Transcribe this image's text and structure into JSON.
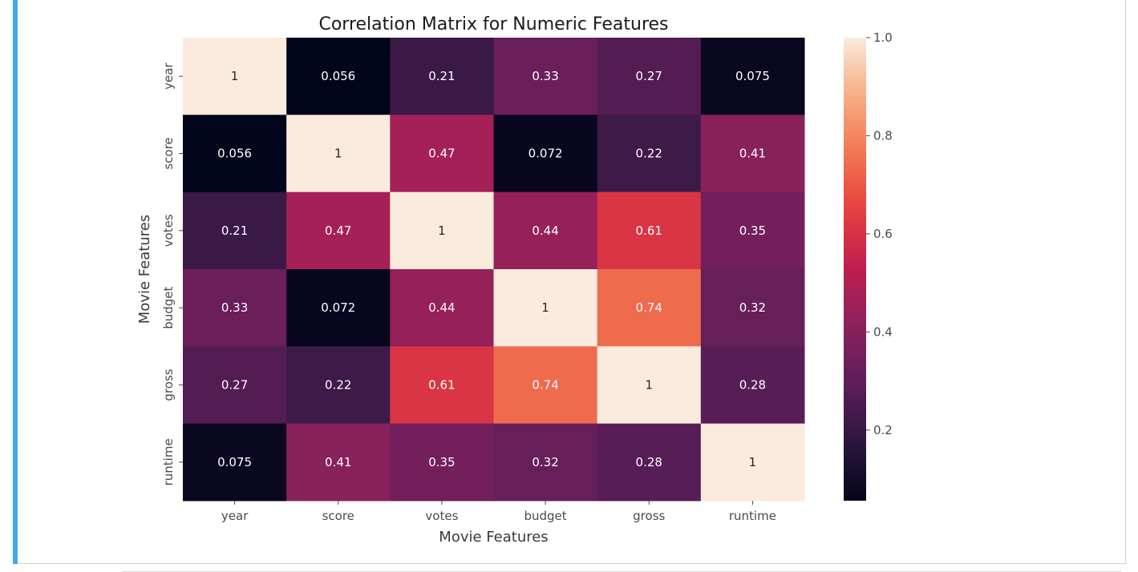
{
  "chart_data": {
    "type": "heatmap",
    "title": "Correlation Matrix for Numeric Features",
    "xlabel": "Movie Features",
    "ylabel": "Movie Features",
    "x_categories": [
      "year",
      "score",
      "votes",
      "budget",
      "gross",
      "runtime"
    ],
    "y_categories": [
      "year",
      "score",
      "votes",
      "budget",
      "gross",
      "runtime"
    ],
    "values": [
      [
        1,
        0.056,
        0.21,
        0.33,
        0.27,
        0.075
      ],
      [
        0.056,
        1,
        0.47,
        0.072,
        0.22,
        0.41
      ],
      [
        0.21,
        0.47,
        1,
        0.44,
        0.61,
        0.35
      ],
      [
        0.33,
        0.072,
        0.44,
        1,
        0.74,
        0.32
      ],
      [
        0.27,
        0.22,
        0.61,
        0.74,
        1,
        0.28
      ],
      [
        0.075,
        0.41,
        0.35,
        0.32,
        0.28,
        1
      ]
    ],
    "annotations": [
      [
        "1",
        "0.056",
        "0.21",
        "0.33",
        "0.27",
        "0.075"
      ],
      [
        "0.056",
        "1",
        "0.47",
        "0.072",
        "0.22",
        "0.41"
      ],
      [
        "0.21",
        "0.47",
        "1",
        "0.44",
        "0.61",
        "0.35"
      ],
      [
        "0.33",
        "0.072",
        "0.44",
        "1",
        "0.74",
        "0.32"
      ],
      [
        "0.27",
        "0.22",
        "0.61",
        "0.74",
        "1",
        "0.28"
      ],
      [
        "0.075",
        "0.41",
        "0.35",
        "0.32",
        "0.28",
        "1"
      ]
    ],
    "colormap": "rocket",
    "colorbar": {
      "range": [
        0.056,
        1.0
      ],
      "ticks": [
        0.2,
        0.4,
        0.6,
        0.8,
        1.0
      ],
      "tick_labels": [
        "0.2",
        "0.4",
        "0.6",
        "0.8",
        "1.0"
      ]
    },
    "grid": false
  }
}
